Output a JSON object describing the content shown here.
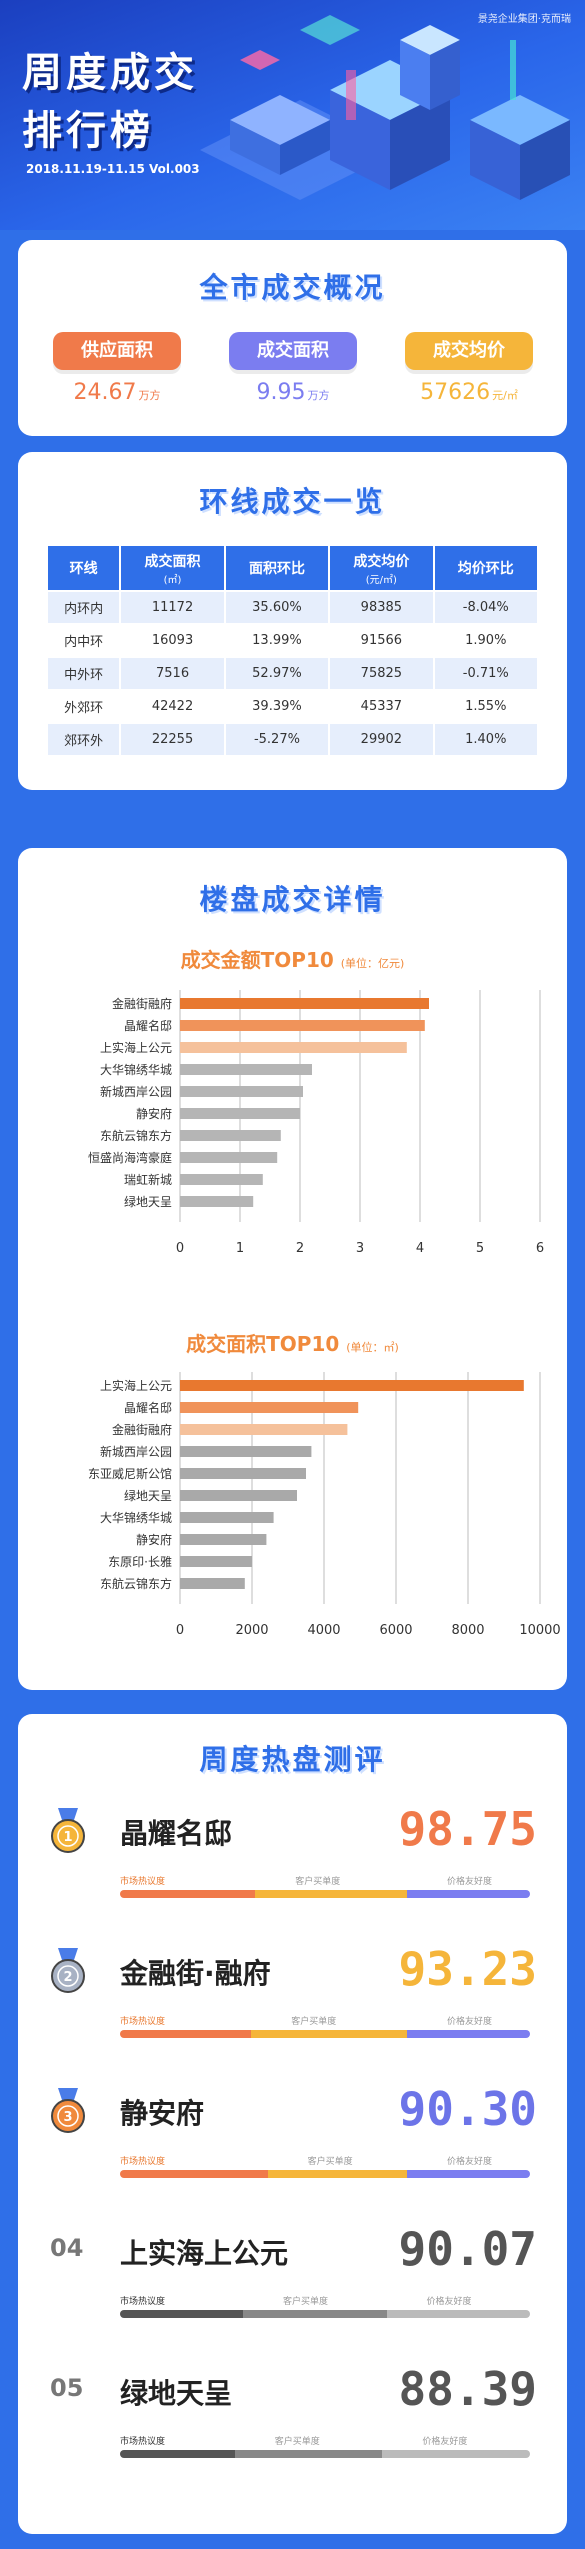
{
  "header": {
    "title_line1": "周度成交",
    "title_line2": "排行榜",
    "date": "2018.11.19-11.15  Vol.003",
    "brand": "景尧企业集团·克而瑞"
  },
  "overview": {
    "title": "全市成交概况",
    "items": [
      {
        "label": "供应面积",
        "value": "24.67",
        "unit": "万方",
        "color": "#f07a4a"
      },
      {
        "label": "成交面积",
        "value": "9.95",
        "unit": "万方",
        "color": "#7b7df0"
      },
      {
        "label": "成交均价",
        "value": "57626",
        "unit": "元/㎡",
        "color": "#f5b53a"
      }
    ]
  },
  "ring": {
    "title": "环线成交一览",
    "headers": [
      {
        "main": "环线",
        "sub": ""
      },
      {
        "main": "成交面积",
        "sub": "(㎡)"
      },
      {
        "main": "面积环比",
        "sub": ""
      },
      {
        "main": "成交均价",
        "sub": "(元/㎡)"
      },
      {
        "main": "均价环比",
        "sub": ""
      }
    ],
    "rows": [
      [
        "内环内",
        "11172",
        "35.60%",
        "98385",
        "-8.04%"
      ],
      [
        "内中环",
        "16093",
        "13.99%",
        "91566",
        "1.90%"
      ],
      [
        "中外环",
        "7516",
        "52.97%",
        "75825",
        "-0.71%"
      ],
      [
        "外郊环",
        "42422",
        "39.39%",
        "45337",
        "1.55%"
      ],
      [
        "郊环外",
        "22255",
        "-5.27%",
        "29902",
        "1.40%"
      ]
    ]
  },
  "detail": {
    "title": "楼盘成交详情"
  },
  "chart_data": [
    {
      "type": "bar",
      "orientation": "horizontal",
      "title": "成交金额TOP10",
      "unit_label": "(单位：亿元)",
      "categories": [
        "金融街融府",
        "晶耀名邸",
        "上实海上公元",
        "大华锦绣华城",
        "新城西岸公园",
        "静安府",
        "东航云锦东方",
        "恒盛尚海湾豪庭",
        "瑞虹新城",
        "绿地天呈"
      ],
      "values": [
        4.15,
        4.08,
        3.78,
        2.2,
        2.05,
        2.0,
        1.68,
        1.62,
        1.38,
        1.22
      ],
      "colors": [
        "#e8782f",
        "#f0935a",
        "#f5c19b",
        "#b5b5b5",
        "#b5b5b5",
        "#b5b5b5",
        "#b5b5b5",
        "#b5b5b5",
        "#b5b5b5",
        "#b5b5b5"
      ],
      "xlim": [
        0,
        6
      ],
      "xticks": [
        "0",
        "1",
        "2",
        "3",
        "4",
        "5",
        "6"
      ]
    },
    {
      "type": "bar",
      "orientation": "horizontal",
      "title": "成交面积TOP10",
      "unit_label": "(单位：㎡)",
      "categories": [
        "上实海上公元",
        "晶耀名邸",
        "金融街融府",
        "新城西岸公园",
        "东亚威尼斯公馆",
        "绿地天呈",
        "大华锦绣华城",
        "静安府",
        "东原印·长雅",
        "东航云锦东方"
      ],
      "values": [
        9550,
        4950,
        4650,
        3650,
        3500,
        3250,
        2600,
        2400,
        2000,
        1800
      ],
      "colors": [
        "#e8782f",
        "#f0935a",
        "#f5c19b",
        "#a9a9a9",
        "#a9a9a9",
        "#a9a9a9",
        "#a9a9a9",
        "#a9a9a9",
        "#a9a9a9",
        "#a9a9a9"
      ],
      "xlim": [
        0,
        10000
      ],
      "xticks": [
        "0",
        "2000",
        "4000",
        "6000",
        "8000",
        "10000"
      ]
    }
  ],
  "hot": {
    "title": "周度热盘测评",
    "bar_labels": [
      "市场热议度",
      "客户买单度",
      "价格友好度"
    ],
    "items": [
      {
        "rank": "1",
        "name": "晶耀名邸",
        "score": "98.75",
        "score_color": "#f07a4a",
        "label_color": "#e8782f",
        "shares": [
          0.33,
          0.37,
          0.3
        ],
        "colors": [
          "#f07a4a",
          "#f5b53a",
          "#7b7df0"
        ],
        "medal": "#f5b53a",
        "medal_icon": "medal-gold-icon"
      },
      {
        "rank": "2",
        "name": "金融街·融府",
        "score": "93.23",
        "score_color": "#f5b53a",
        "label_color": "#e8782f",
        "shares": [
          0.32,
          0.38,
          0.3
        ],
        "colors": [
          "#f07a4a",
          "#f5b53a",
          "#7b7df0"
        ],
        "medal": "#a8b2c4",
        "medal_icon": "medal-silver-icon"
      },
      {
        "rank": "3",
        "name": "静安府",
        "score": "90.30",
        "score_color": "#6c74e8",
        "label_color": "#e8782f",
        "shares": [
          0.36,
          0.34,
          0.3
        ],
        "colors": [
          "#f07a4a",
          "#f5b53a",
          "#7b7df0"
        ],
        "medal": "#f08a3c",
        "medal_icon": "medal-bronze-icon"
      },
      {
        "rank": "04",
        "name": "上实海上公元",
        "score": "90.07",
        "score_color": "#555555",
        "label_color": "#333333",
        "shares": [
          0.3,
          0.35,
          0.35
        ],
        "colors": [
          "#555555",
          "#888888",
          "#bbbbbb"
        ],
        "medal": "",
        "medal_icon": ""
      },
      {
        "rank": "05",
        "name": "绿地天呈",
        "score": "88.39",
        "score_color": "#555555",
        "label_color": "#333333",
        "shares": [
          0.28,
          0.36,
          0.36
        ],
        "colors": [
          "#555555",
          "#888888",
          "#bbbbbb"
        ],
        "medal": "",
        "medal_icon": ""
      }
    ]
  }
}
